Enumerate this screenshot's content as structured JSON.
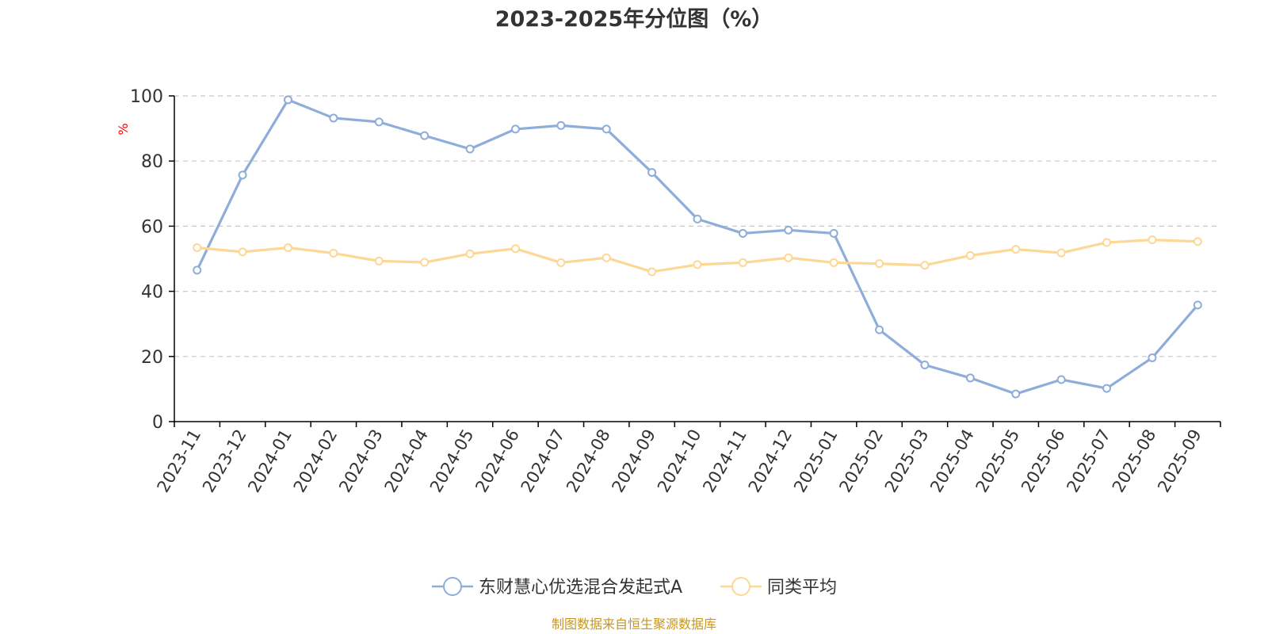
{
  "colors": {
    "series1": "#8eadd9",
    "series2": "#fdd795",
    "axis": "#000000",
    "grid": "#c8c8c8",
    "source": "#c8961e",
    "unit": "#ff0000"
  },
  "chart_data": {
    "type": "line",
    "title": "2023-2025年分位图（%）",
    "ylabel": "%",
    "ylim": [
      0,
      100
    ],
    "yticks": [
      0,
      20,
      40,
      60,
      80,
      100
    ],
    "grid": "horizontal-dashed",
    "legend_position": "bottom-center",
    "x": [
      "2023-11",
      "2023-12",
      "2024-01",
      "2024-02",
      "2024-03",
      "2024-04",
      "2024-05",
      "2024-06",
      "2024-07",
      "2024-08",
      "2024-09",
      "2024-10",
      "2024-11",
      "2024-12",
      "2025-01",
      "2025-02",
      "2025-03",
      "2025-04",
      "2025-05",
      "2025-06",
      "2025-07",
      "2025-08",
      "2025-09"
    ],
    "series": [
      {
        "name": "东财慧心优选混合发起式A",
        "values": [
          46.5,
          75.7,
          98.8,
          93.2,
          92.0,
          87.8,
          83.7,
          89.8,
          90.9,
          89.8,
          76.5,
          62.2,
          57.8,
          58.8,
          57.8,
          28.2,
          17.4,
          13.4,
          8.5,
          12.9,
          10.2,
          19.6,
          35.8
        ]
      },
      {
        "name": "同类平均",
        "values": [
          53.4,
          52.1,
          53.4,
          51.7,
          49.3,
          48.9,
          51.5,
          53.1,
          48.8,
          50.3,
          46.0,
          48.2,
          48.8,
          50.3,
          48.8,
          48.5,
          48.0,
          51.0,
          52.9,
          51.8,
          55.0,
          55.8,
          55.3
        ]
      }
    ]
  },
  "source_text": "制图数据来自恒生聚源数据库"
}
